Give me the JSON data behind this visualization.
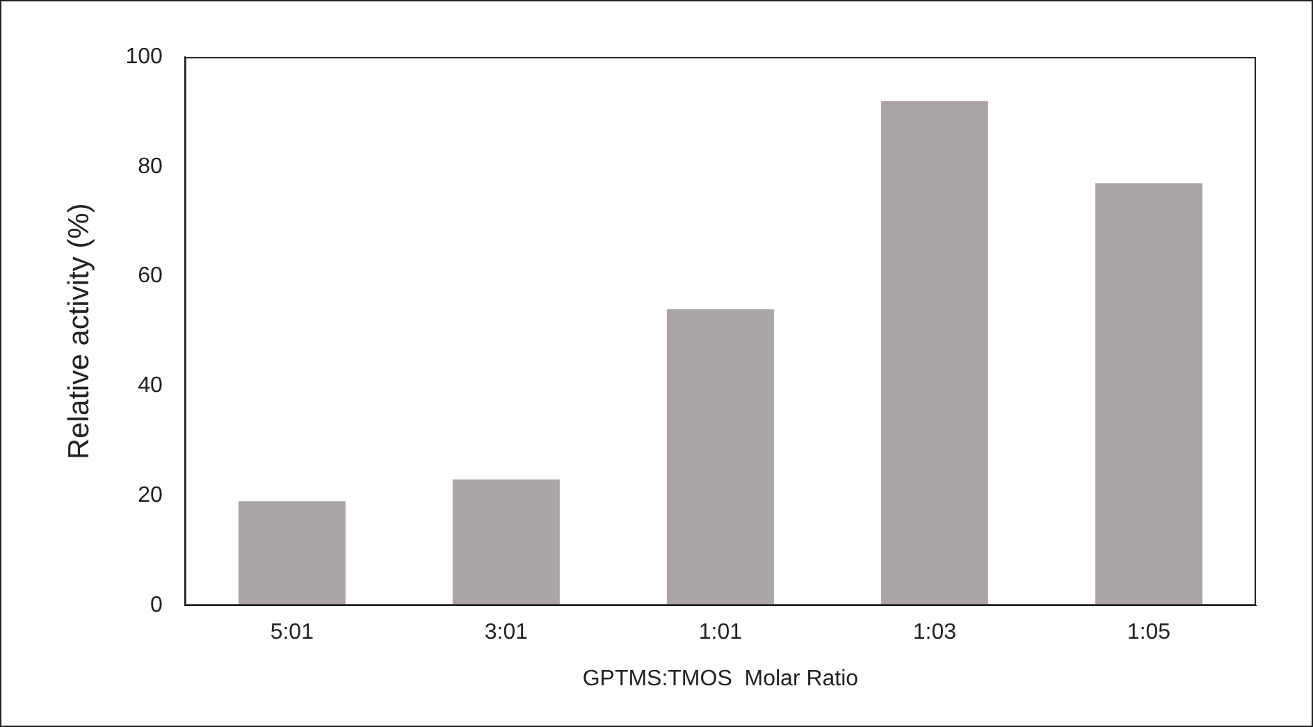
{
  "chart_data": {
    "type": "bar",
    "categories": [
      "5:01",
      "3:01",
      "1:01",
      "1:03",
      "1:05"
    ],
    "values": [
      19,
      23,
      54,
      92,
      77
    ],
    "color": "#aba5a5",
    "xlabel": "GPTMS:TMOS  Molar Ratio",
    "ylabel": "Relative activity (%)",
    "ylim": [
      0,
      100
    ],
    "yticks": [
      0,
      20,
      40,
      60,
      80,
      100
    ],
    "grid": false,
    "legend": false
  }
}
